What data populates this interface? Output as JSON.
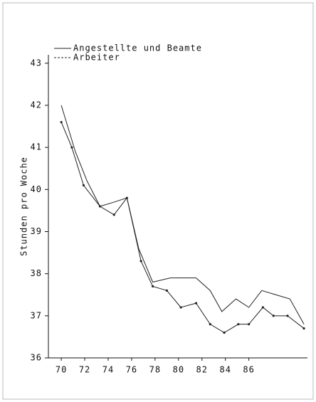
{
  "chart_data": {
    "type": "line",
    "y_label": "Stunden pro Woche",
    "series": [
      {
        "name": "Angestellte und Beamte",
        "color": "#222222",
        "dashed": false,
        "x": [
          70.0,
          71.2,
          72.2,
          73.3,
          74.5,
          75.6,
          76.6,
          77.8,
          79.3,
          81.5,
          82.7,
          83.7,
          84.9,
          86.0,
          87.1,
          89.5,
          90.7
        ],
        "values": [
          42.0,
          40.9,
          40.2,
          39.6,
          39.7,
          39.8,
          38.6,
          37.8,
          37.9,
          37.9,
          37.6,
          37.1,
          37.4,
          37.2,
          37.6,
          37.4,
          36.8
        ]
      },
      {
        "name": "Arbeiter",
        "color": "#222222",
        "dashed": true,
        "x": [
          70.0,
          70.9,
          71.9,
          73.3,
          74.5,
          75.6,
          76.8,
          77.8,
          79.0,
          80.2,
          81.5,
          82.7,
          83.9,
          85.1,
          86.0,
          87.2,
          88.1,
          89.3,
          90.7
        ],
        "values": [
          41.6,
          41.0,
          40.1,
          39.6,
          39.4,
          39.8,
          38.3,
          37.7,
          37.6,
          37.2,
          37.3,
          36.8,
          36.6,
          36.8,
          36.8,
          37.2,
          37.0,
          37.0,
          36.7
        ]
      }
    ],
    "xlim": [
      68.9,
      91.0
    ],
    "xticks": [
      70,
      72,
      74,
      76,
      78,
      80,
      82,
      84,
      86
    ],
    "ylim": [
      36,
      43.2
    ],
    "yticks": [
      36,
      37,
      38,
      39,
      40,
      41,
      42,
      43
    ]
  }
}
